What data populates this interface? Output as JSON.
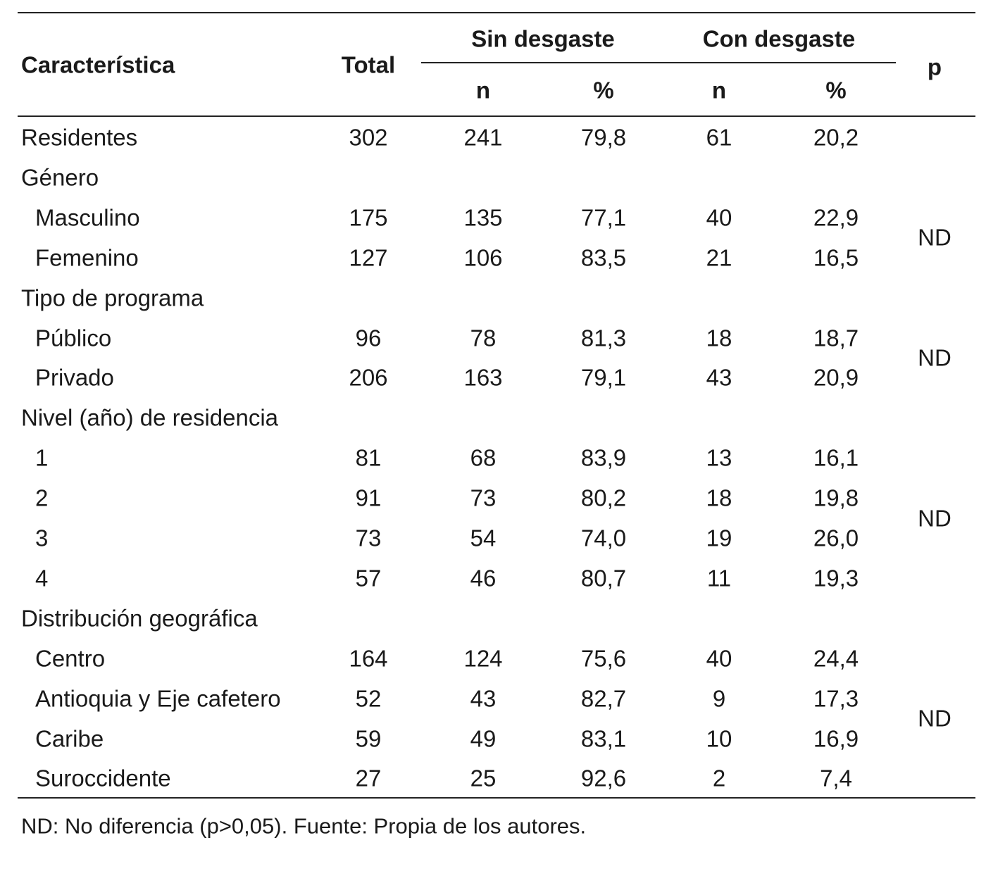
{
  "table": {
    "header": {
      "characteristic": "Característica",
      "total": "Total",
      "groups": [
        "Sin desgaste",
        "Con desgaste"
      ],
      "subheaders": [
        "n",
        "%",
        "n",
        "%"
      ],
      "p": "p"
    },
    "summary": [
      "Residentes",
      "302",
      "241",
      "79,8",
      "61",
      "20,2"
    ],
    "sections": [
      {
        "title": "Género",
        "p": "ND",
        "rows": [
          [
            "Masculino",
            "175",
            "135",
            "77,1",
            "40",
            "22,9"
          ],
          [
            "Femenino",
            "127",
            "106",
            "83,5",
            "21",
            "16,5"
          ]
        ]
      },
      {
        "title": "Tipo de programa",
        "p": "ND",
        "rows": [
          [
            "Público",
            "96",
            "78",
            "81,3",
            "18",
            "18,7"
          ],
          [
            "Privado",
            "206",
            "163",
            "79,1",
            "43",
            "20,9"
          ]
        ]
      },
      {
        "title": "Nivel (año) de residencia",
        "p": "ND",
        "rows": [
          [
            "1",
            "81",
            "68",
            "83,9",
            "13",
            "16,1"
          ],
          [
            "2",
            "91",
            "73",
            "80,2",
            "18",
            "19,8"
          ],
          [
            "3",
            "73",
            "54",
            "74,0",
            "19",
            "26,0"
          ],
          [
            "4",
            "57",
            "46",
            "80,7",
            "11",
            "19,3"
          ]
        ]
      },
      {
        "title": "Distribución geográfica",
        "p": "ND",
        "rows": [
          [
            "Centro",
            "164",
            "124",
            "75,6",
            "40",
            "24,4"
          ],
          [
            "Antioquia y Eje cafetero",
            "52",
            "43",
            "82,7",
            "9",
            "17,3"
          ],
          [
            "Caribe",
            "59",
            "49",
            "83,1",
            "10",
            "16,9"
          ],
          [
            "Suroccidente",
            "27",
            "25",
            "92,6",
            "2",
            "7,4"
          ]
        ]
      }
    ],
    "footnote": "ND: No diferencia (p>0,05). Fuente: Propia de los autores."
  }
}
